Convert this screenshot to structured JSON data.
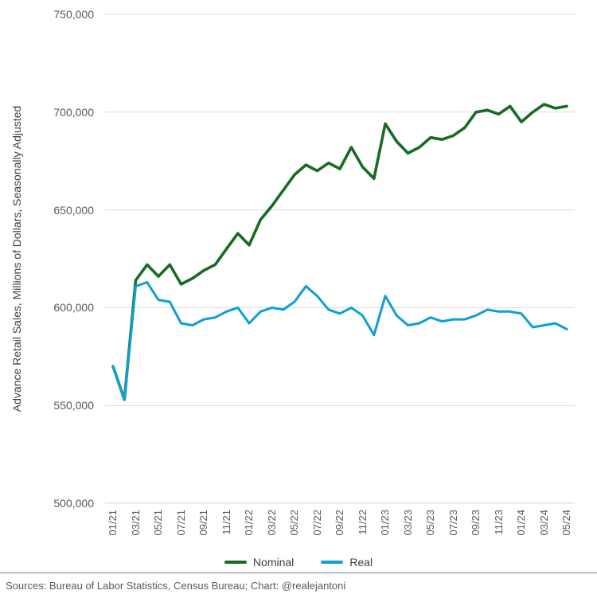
{
  "colors": {
    "nominal": "#196b24",
    "real": "#0f9ed5",
    "grid": "#d9d9d9",
    "axis_text": "#595959"
  },
  "chart_data": {
    "type": "line",
    "ylabel": "Advance Retail Sales, Millions of Dollars, Seasonally Adjusted",
    "grid": true,
    "legend_position": "bottom",
    "ylim": [
      500000,
      750000
    ],
    "ytick_step": 50000,
    "y_tick_labels": [
      "750,000",
      "700,000",
      "650,000",
      "600,000",
      "550,000",
      "500,000"
    ],
    "x": [
      "01/21",
      "02/21",
      "03/21",
      "04/21",
      "05/21",
      "06/21",
      "07/21",
      "08/21",
      "09/21",
      "10/21",
      "11/21",
      "12/21",
      "01/22",
      "02/22",
      "03/22",
      "04/22",
      "05/22",
      "06/22",
      "07/22",
      "08/22",
      "09/22",
      "10/22",
      "11/22",
      "12/22",
      "01/23",
      "02/23",
      "03/23",
      "04/23",
      "05/23",
      "06/23",
      "07/23",
      "08/23",
      "09/23",
      "10/23",
      "11/23",
      "12/23",
      "01/24",
      "02/24",
      "03/24",
      "04/24",
      "05/24"
    ],
    "x_tick_every": 2,
    "x_tick_labels": [
      "01/21",
      "03/21",
      "05/21",
      "07/21",
      "09/21",
      "11/21",
      "01/22",
      "03/22",
      "05/22",
      "07/22",
      "09/22",
      "11/22",
      "01/23",
      "03/23",
      "05/23",
      "07/23",
      "09/23",
      "11/23",
      "01/24",
      "03/24",
      "05/24"
    ],
    "series": [
      {
        "name": "Nominal",
        "color": "#196b24",
        "values": [
          570000,
          553000,
          614000,
          622000,
          616000,
          622000,
          612000,
          615000,
          619000,
          622000,
          630000,
          638000,
          632000,
          645000,
          652000,
          660000,
          668000,
          673000,
          670000,
          674000,
          671000,
          682000,
          672000,
          666000,
          694000,
          685000,
          679000,
          682000,
          687000,
          686000,
          688000,
          692000,
          700000,
          701000,
          699000,
          703000,
          695000,
          700000,
          704000,
          702000,
          703000
        ]
      },
      {
        "name": "Real",
        "color": "#0f9ed5",
        "values": [
          570000,
          553000,
          611000,
          613000,
          604000,
          603000,
          592000,
          591000,
          594000,
          595000,
          598000,
          600000,
          592000,
          598000,
          600000,
          599000,
          603000,
          611000,
          606000,
          599000,
          597000,
          600000,
          596000,
          586000,
          606000,
          596000,
          591000,
          592000,
          595000,
          593000,
          594000,
          594000,
          596000,
          599000,
          598000,
          598000,
          597000,
          590000,
          591000,
          592000,
          589000
        ]
      }
    ]
  },
  "footer": {
    "sources": "Sources: Bureau of Labor Statistics, Census Bureau; Chart: @realejantoni"
  }
}
